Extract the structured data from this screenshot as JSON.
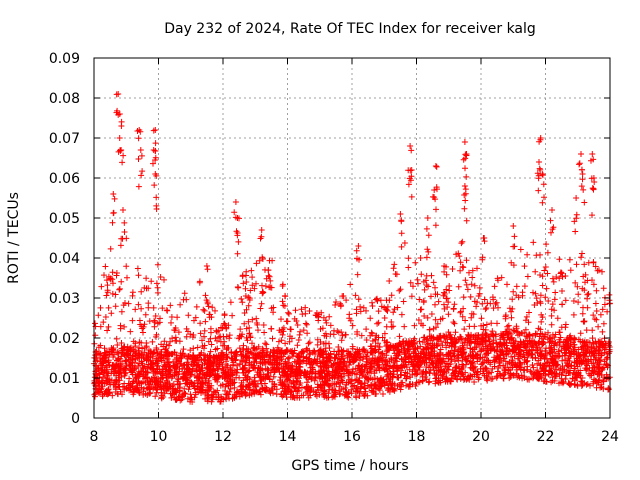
{
  "chart_data": {
    "type": "scatter",
    "title": "Day 232 of 2024, Rate Of TEC Index for receiver kalg",
    "xlabel": "GPS time / hours",
    "ylabel": "ROTI / TECUs",
    "xlim": [
      8,
      24
    ],
    "ylim": [
      0,
      0.09
    ],
    "x_ticks": [
      8,
      10,
      12,
      14,
      16,
      18,
      20,
      22,
      24
    ],
    "x_tick_labels": [
      "8",
      "10",
      "12",
      "14",
      "16",
      "18",
      "20",
      "22",
      "24"
    ],
    "y_ticks": [
      0,
      0.01,
      0.02,
      0.03,
      0.04,
      0.05,
      0.06,
      0.07,
      0.08,
      0.09
    ],
    "y_tick_labels": [
      "0",
      "0.01",
      "0.02",
      "0.03",
      "0.04",
      "0.05",
      "0.06",
      "0.07",
      "0.08",
      "0.09"
    ],
    "grid": true,
    "marker": "+",
    "color": "#ff0000",
    "series": [
      {
        "name": "ROTI",
        "baseline_profile": [
          [
            8.0,
            0.011
          ],
          [
            9.0,
            0.012
          ],
          [
            10.0,
            0.011
          ],
          [
            11.0,
            0.01
          ],
          [
            12.0,
            0.01
          ],
          [
            13.0,
            0.012
          ],
          [
            14.0,
            0.011
          ],
          [
            15.0,
            0.011
          ],
          [
            16.0,
            0.011
          ],
          [
            17.0,
            0.012
          ],
          [
            18.0,
            0.014
          ],
          [
            19.0,
            0.015
          ],
          [
            20.0,
            0.015
          ],
          [
            21.0,
            0.016
          ],
          [
            22.0,
            0.015
          ],
          [
            23.0,
            0.014
          ],
          [
            24.0,
            0.013
          ]
        ],
        "upper_envelope": [
          [
            8.0,
            0.025
          ],
          [
            8.5,
            0.045
          ],
          [
            9.0,
            0.045
          ],
          [
            9.5,
            0.035
          ],
          [
            10.0,
            0.04
          ],
          [
            10.5,
            0.025
          ],
          [
            11.0,
            0.04
          ],
          [
            11.5,
            0.03
          ],
          [
            12.0,
            0.025
          ],
          [
            12.5,
            0.035
          ],
          [
            13.0,
            0.04
          ],
          [
            13.5,
            0.042
          ],
          [
            14.0,
            0.03
          ],
          [
            14.5,
            0.028
          ],
          [
            15.0,
            0.027
          ],
          [
            15.5,
            0.03
          ],
          [
            16.0,
            0.034
          ],
          [
            16.5,
            0.03
          ],
          [
            17.0,
            0.03
          ],
          [
            17.5,
            0.045
          ],
          [
            18.0,
            0.042
          ],
          [
            18.5,
            0.04
          ],
          [
            19.0,
            0.04
          ],
          [
            19.5,
            0.045
          ],
          [
            20.0,
            0.035
          ],
          [
            20.5,
            0.035
          ],
          [
            21.0,
            0.04
          ],
          [
            21.5,
            0.045
          ],
          [
            22.0,
            0.045
          ],
          [
            22.5,
            0.04
          ],
          [
            23.0,
            0.042
          ],
          [
            23.5,
            0.04
          ],
          [
            24.0,
            0.035
          ]
        ],
        "peaks": [
          [
            8.75,
            0.081
          ],
          [
            8.8,
            0.076
          ],
          [
            8.85,
            0.073
          ],
          [
            9.4,
            0.072
          ],
          [
            9.9,
            0.072
          ],
          [
            9.85,
            0.067
          ],
          [
            9.45,
            0.067
          ],
          [
            9.9,
            0.061
          ],
          [
            8.6,
            0.056
          ],
          [
            17.8,
            0.068
          ],
          [
            17.85,
            0.062
          ],
          [
            18.6,
            0.063
          ],
          [
            18.55,
            0.057
          ],
          [
            19.5,
            0.069
          ],
          [
            19.55,
            0.066
          ],
          [
            19.5,
            0.058
          ],
          [
            21.85,
            0.07
          ],
          [
            21.8,
            0.064
          ],
          [
            21.9,
            0.061
          ],
          [
            23.1,
            0.066
          ],
          [
            23.45,
            0.066
          ],
          [
            23.5,
            0.06
          ],
          [
            23.15,
            0.061
          ],
          [
            12.4,
            0.054
          ],
          [
            12.45,
            0.05
          ],
          [
            16.2,
            0.043
          ],
          [
            11.5,
            0.038
          ],
          [
            13.2,
            0.047
          ],
          [
            8.9,
            0.052
          ],
          [
            17.5,
            0.051
          ],
          [
            18.35,
            0.05
          ],
          [
            22.2,
            0.052
          ],
          [
            22.95,
            0.055
          ],
          [
            20.1,
            0.045
          ],
          [
            21.0,
            0.048
          ]
        ]
      }
    ]
  }
}
